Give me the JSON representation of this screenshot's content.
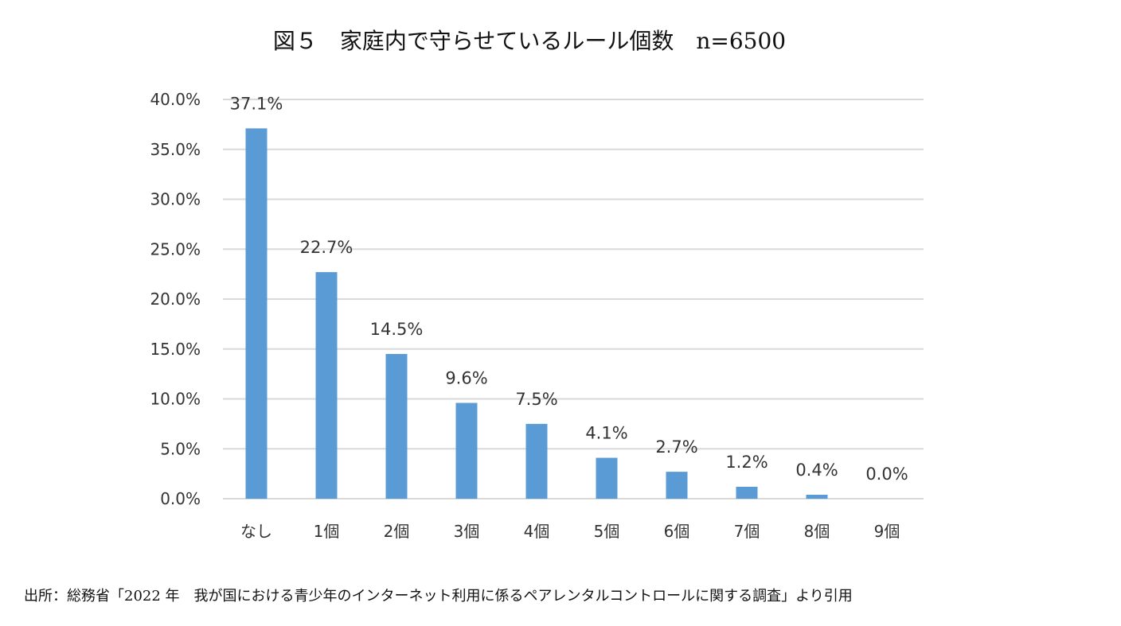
{
  "chart_data": {
    "type": "bar",
    "title": "図５　家庭内で守らせているルール個数　n=6500",
    "categories": [
      "なし",
      "1個",
      "2個",
      "3個",
      "4個",
      "5個",
      "6個",
      "7個",
      "8個",
      "9個"
    ],
    "values": [
      37.1,
      22.7,
      14.5,
      9.6,
      7.5,
      4.1,
      2.7,
      1.2,
      0.4,
      0.0
    ],
    "data_labels": [
      "37.1%",
      "22.7%",
      "14.5%",
      "9.6%",
      "7.5%",
      "4.1%",
      "2.7%",
      "1.2%",
      "0.4%",
      "0.0%"
    ],
    "ylim": [
      0,
      40
    ],
    "yticks": [
      "0.0%",
      "5.0%",
      "10.0%",
      "15.0%",
      "20.0%",
      "25.0%",
      "30.0%",
      "35.0%",
      "40.0%"
    ],
    "grid": true,
    "bar_color": "#5b9bd5",
    "grid_color": "#d9d9d9",
    "xlabel": "",
    "ylabel": ""
  },
  "source": "出所：総務省「2022 年　我が国における青少年のインターネット利用に係るペアレンタルコントロールに関する調査」より引用"
}
